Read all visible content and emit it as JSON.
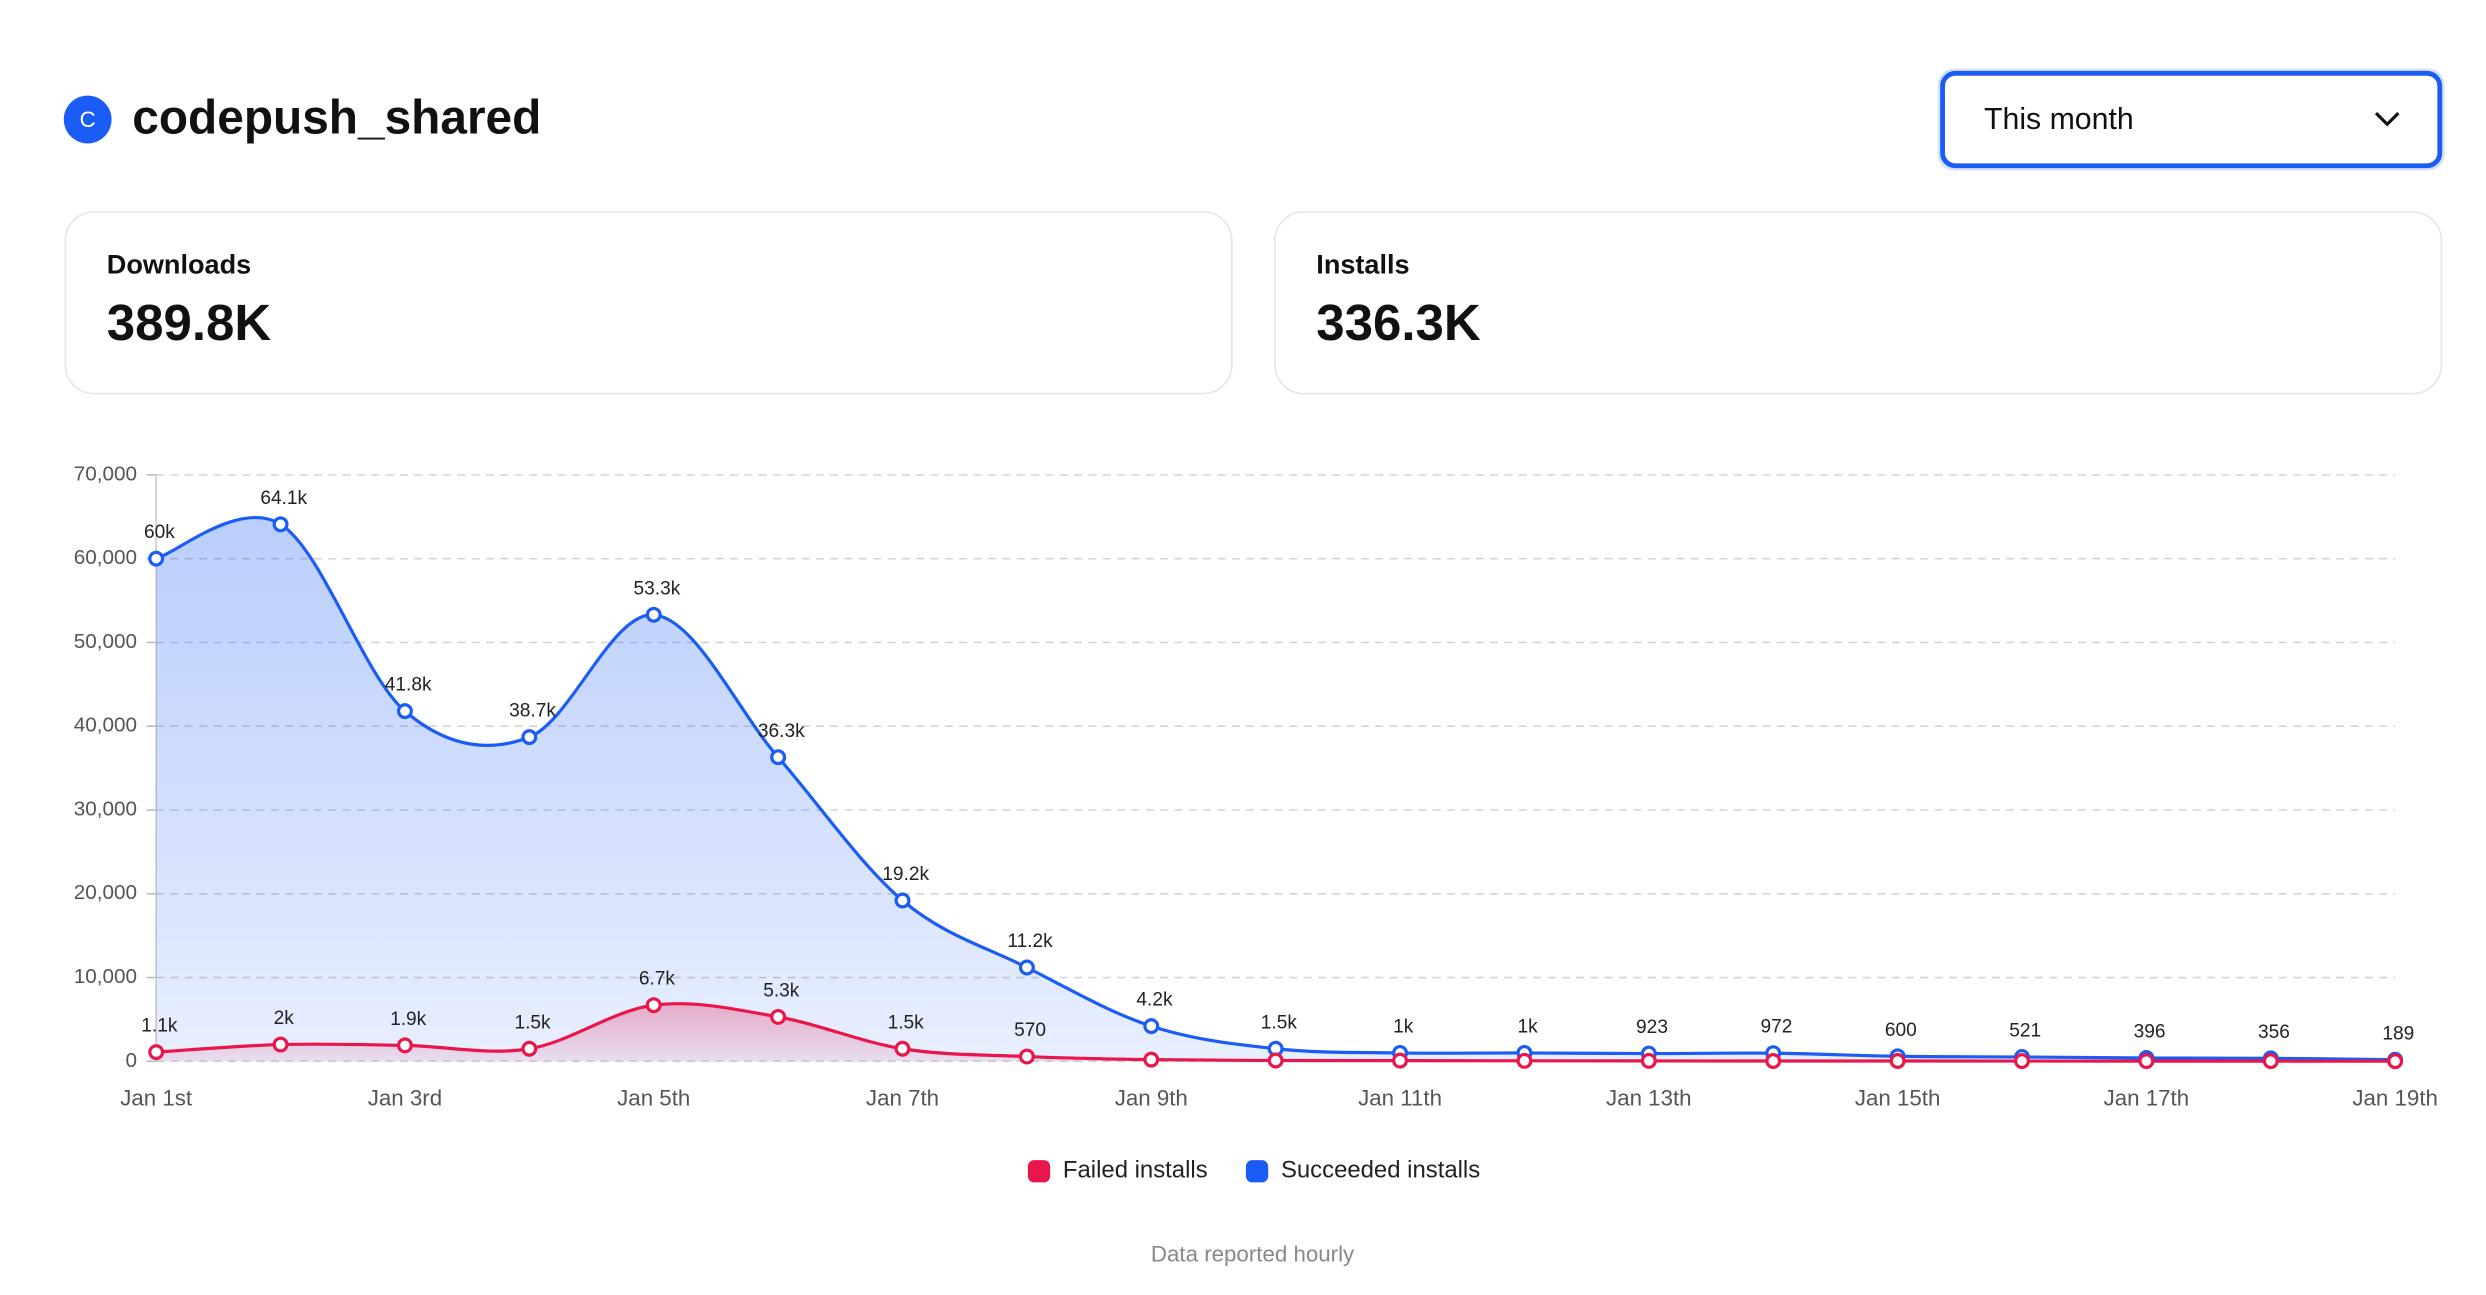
{
  "header": {
    "icon_letter": "C",
    "title": "codepush_shared",
    "dropdown": "This month"
  },
  "cards": [
    {
      "label": "Downloads",
      "value": "389.8K"
    },
    {
      "label": "Installs",
      "value": "336.3K"
    }
  ],
  "chart_data": {
    "type": "line",
    "categories": [
      "Jan 1st",
      null,
      "Jan 3rd",
      null,
      "Jan 5th",
      null,
      "Jan 7th",
      null,
      "Jan 9th",
      null,
      "Jan 11th",
      null,
      "Jan 13th",
      null,
      "Jan 15th",
      null,
      "Jan 17th",
      null,
      "Jan 19th"
    ],
    "series": [
      {
        "name": "Failed installs",
        "color": "#e8164a",
        "values": [
          1100,
          2000,
          1900,
          1500,
          6700,
          5300,
          1500,
          570,
          200,
          100,
          80,
          60,
          50,
          40,
          40,
          30,
          25,
          20,
          15
        ],
        "value_labels": [
          "1.1k",
          "2k",
          "1.9k",
          "1.5k",
          "6.7k",
          "5.3k",
          "1.5k",
          "570",
          null,
          null,
          null,
          null,
          null,
          null,
          null,
          null,
          null,
          null,
          null
        ]
      },
      {
        "name": "Succeeded installs",
        "color": "#1a5cf5",
        "values": [
          60000,
          64100,
          41800,
          38700,
          53300,
          36300,
          19200,
          11200,
          4200,
          1500,
          1000,
          1000,
          923,
          972,
          600,
          521,
          396,
          356,
          189
        ],
        "value_labels": [
          "60k",
          "64.1k",
          "41.8k",
          "38.7k",
          "53.3k",
          "36.3k",
          "19.2k",
          "11.2k",
          "4.2k",
          "1.5k",
          "1k",
          "1k",
          "923",
          "972",
          "600",
          "521",
          "396",
          "356",
          "189"
        ]
      }
    ],
    "ylim": [
      0,
      70000
    ],
    "yticks": [
      0,
      {
        "value": 10000,
        "label": "10,000"
      },
      {
        "value": 20000,
        "label": "20,000"
      },
      {
        "value": 30000,
        "label": "30,000"
      },
      {
        "value": 40000,
        "label": "40,000"
      },
      {
        "value": 50000,
        "label": "50,000"
      },
      {
        "value": 60000,
        "label": "60,000"
      },
      {
        "value": 70000,
        "label": "70,000"
      }
    ],
    "grid": true
  },
  "footer": "Data reported hourly"
}
